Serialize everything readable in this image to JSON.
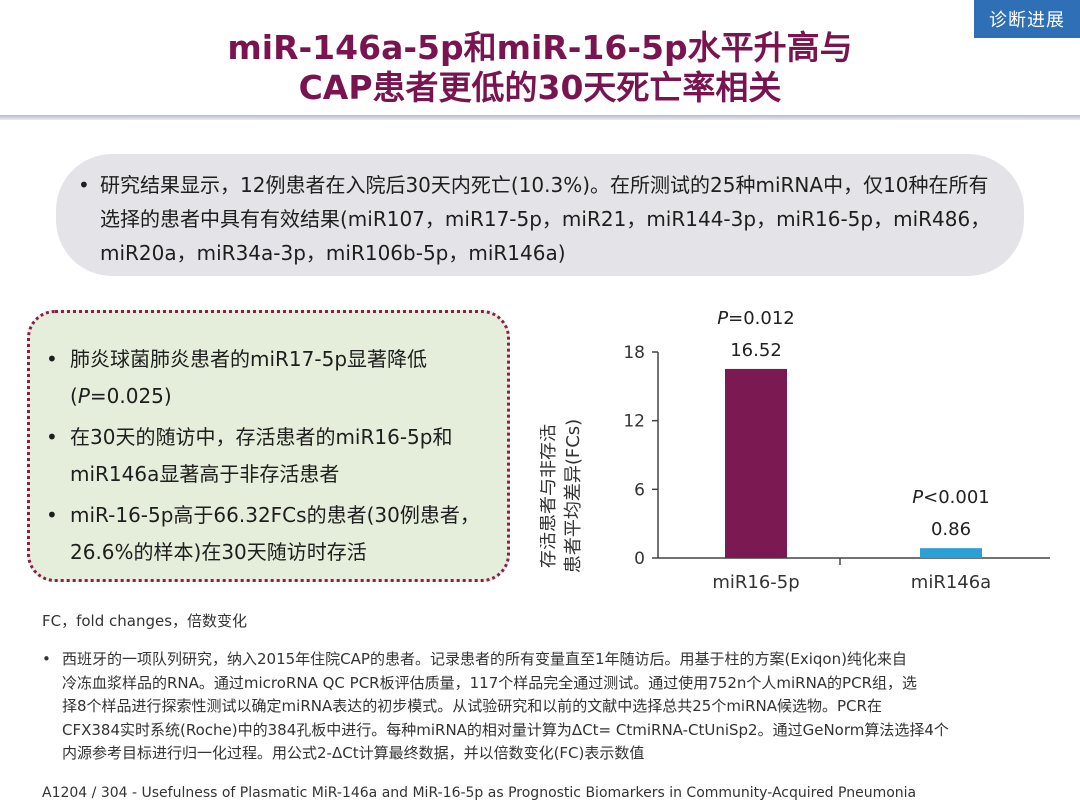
{
  "header": {
    "tag": "诊断进展",
    "title_line1": "miR-146a-5p和miR-16-5p水平升高与",
    "title_line2": "CAP患者更低的30天死亡率相关"
  },
  "summary": {
    "bullet": "•",
    "text": "研究结果显示，12例患者在入院后30天内死亡(10.3%)。在所测试的25种miRNA中，仅10种在所有选择的患者中具有有效结果(miR107，miR17-5p，miR21，miR144-3p，miR16-5p，miR486，miR20a，miR34a-3p，miR106b-5p，miR146a)"
  },
  "findings": {
    "bullet": "•",
    "item1_text": "肺炎球菌肺炎患者的miR17-5p显著降低",
    "item1_p": "P",
    "item1_pvalue": "=0.025)",
    "item1_open": "(",
    "item2": "在30天的随访中，存活患者的miR16-5p和miR146a显著高于非存活患者",
    "item3": "miR-16-5p高于66.32FCs的患者(30例患者，26.6%的样本)在30天随访时存活"
  },
  "chart_data": {
    "type": "bar",
    "categories": [
      "miR16-5p",
      "miR146a"
    ],
    "values": [
      16.52,
      0.86
    ],
    "value_labels": [
      "16.52",
      "0.86"
    ],
    "p_labels": [
      {
        "p": "P",
        "rest": "=0.012"
      },
      {
        "p": "P",
        "rest": "<0.001"
      }
    ],
    "ylabel_line1": "存活患者与非存活",
    "ylabel_line2": "患者平均差异(FCs)",
    "yticks": [
      "0",
      "6",
      "12",
      "18"
    ],
    "ylim": [
      0,
      18
    ],
    "bar_colors": [
      "#7b1a52",
      "#2a9fd8"
    ],
    "title": "",
    "xlabel": "",
    "grid": false
  },
  "footnote": "FC，fold changes，倍数变化",
  "description": {
    "bullet": "•",
    "line1": "西班牙的一项队列研究，纳入2015年住院CAP的患者。记录患者的所有变量直至1年随访后。用基于柱的方案(Exiqon)纯化来自",
    "line2": "冷冻血浆样品的RNA。通过microRNA QC PCR板评估质量，117个样品完全通过测试。通过使用752n个人miRNA的PCR组，选",
    "line3": "择8个样品进行探索性测试以确定miRNA表达的初步模式。从试验研究和以前的文献中选择总共25个miRNA候选物。PCR在",
    "line4": "CFX384实时系统(Roche)中的384孔板中进行。每种miRNA的相对量计算为ΔCt= CtmiRNA-CtUniSp2。通过GeNorm算法选择4个",
    "line5": "内源参考目标进行归一化过程。用公式2-ΔCt计算最终数据，并以倍数变化(FC)表示数值"
  },
  "citation": "A1204 / 304 - Usefulness of Plasmatic MiR-146a and MiR-16-5p as Prognostic Biomarkers in Community-Acquired Pneumonia"
}
